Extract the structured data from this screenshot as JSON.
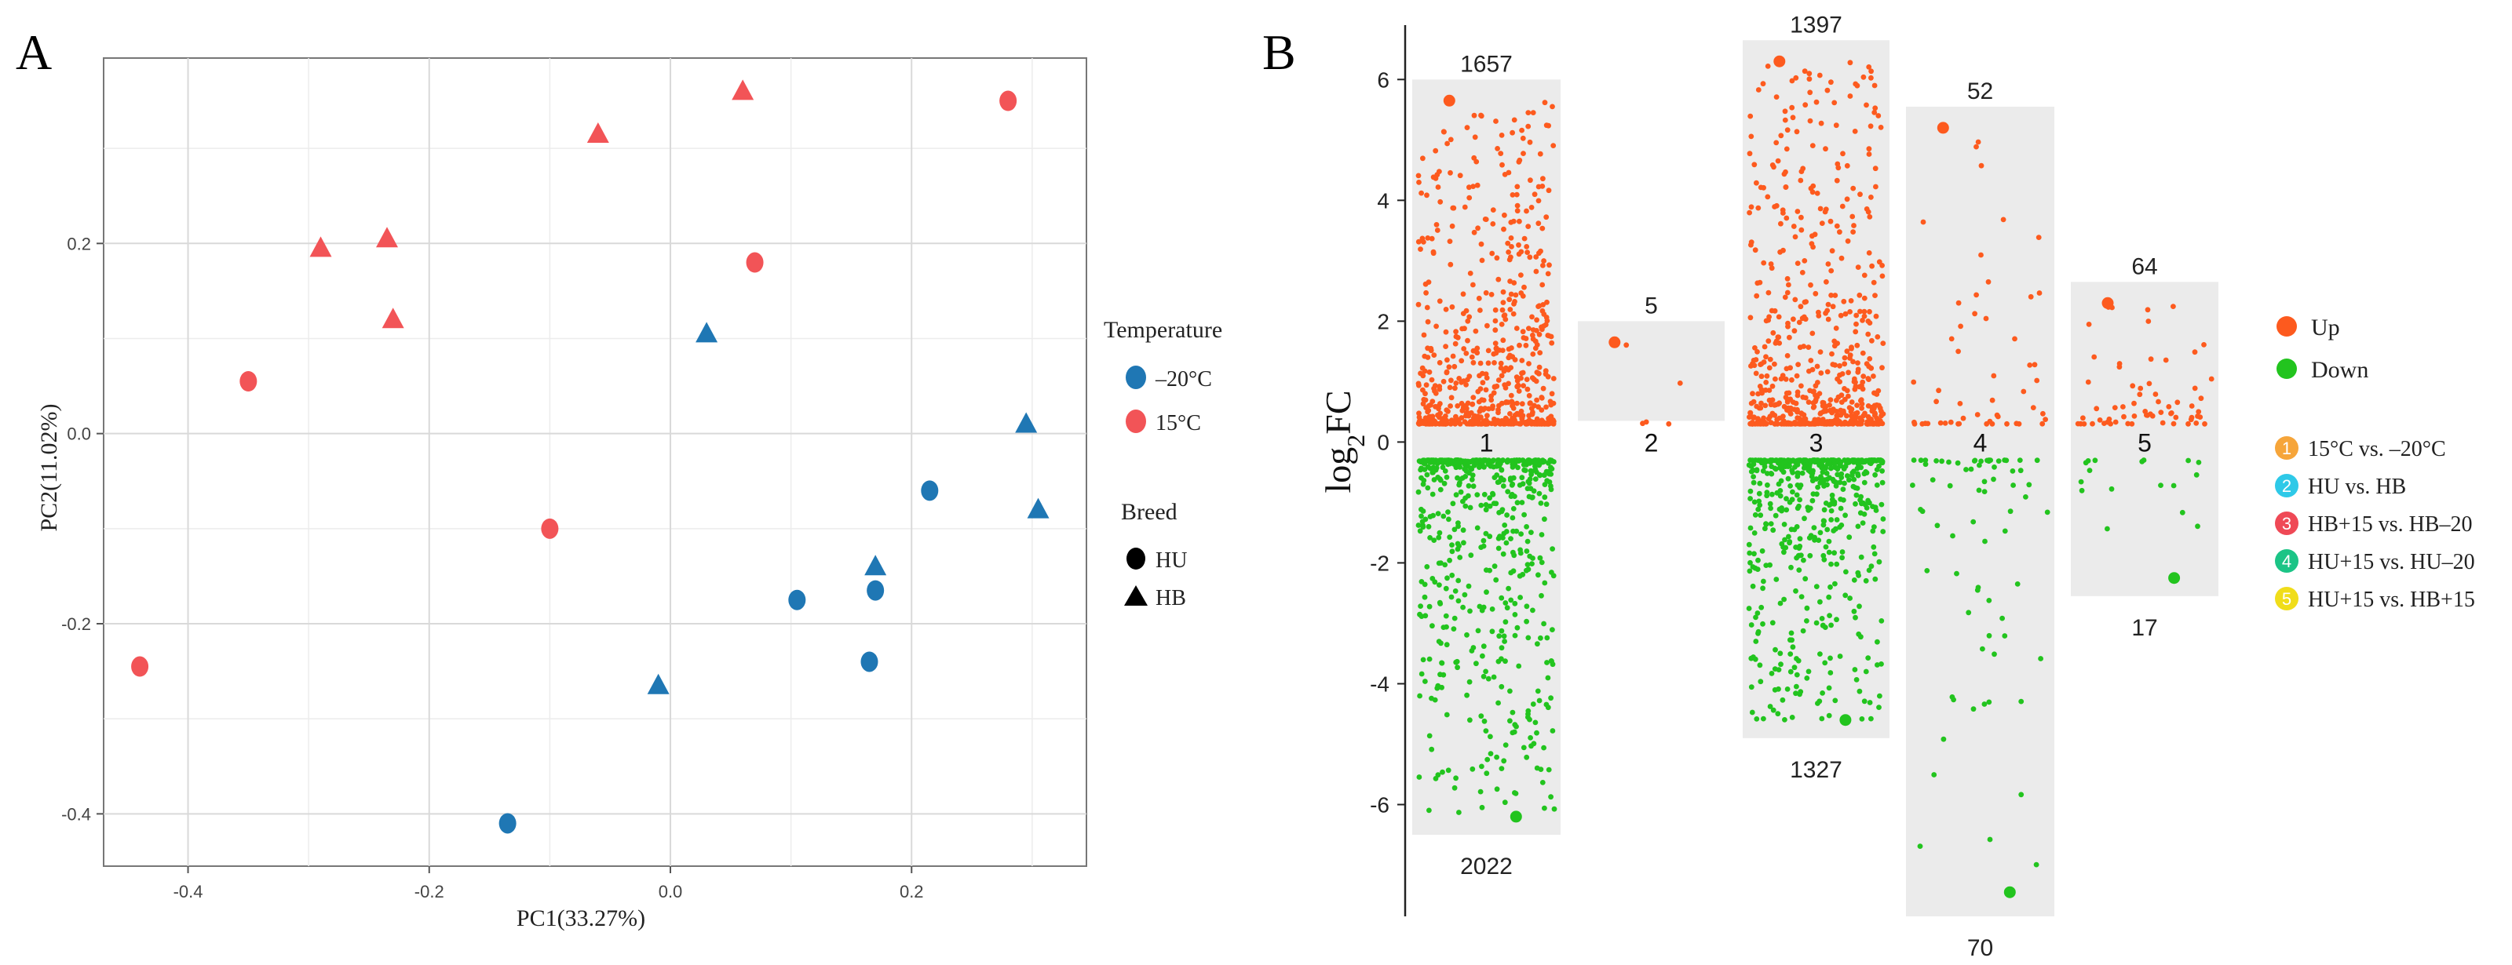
{
  "panel_a": {
    "label": "A",
    "chart_data": {
      "type": "scatter",
      "xlabel": "PC1(33.27%)",
      "ylabel": "PC2(11.02%)",
      "xlim": [
        -0.47,
        0.345
      ],
      "ylim": [
        -0.455,
        0.395
      ],
      "xticks": [
        -0.4,
        -0.2,
        0.0,
        0.2
      ],
      "xtick_labels": [
        "-0.4",
        "-0.2",
        "0.0",
        "0.2"
      ],
      "yticks": [
        -0.4,
        -0.2,
        0.0,
        0.2
      ],
      "ytick_labels": [
        "-0.4",
        "-0.2",
        "0.0",
        "0.2"
      ],
      "grid": true,
      "legend": {
        "temperature_title": "Temperature",
        "temperature_items": [
          {
            "label": "–20°C",
            "color": "#1f77b4"
          },
          {
            "label": "15°C",
            "color": "#f25457"
          }
        ],
        "breed_title": "Breed",
        "breed_items": [
          {
            "label": "HU",
            "shape": "circle"
          },
          {
            "label": "HB",
            "shape": "triangle"
          }
        ]
      },
      "points": [
        {
          "x": 0.06,
          "y": 0.36,
          "temp": "15",
          "breed": "HB"
        },
        {
          "x": -0.06,
          "y": 0.315,
          "temp": "15",
          "breed": "HB"
        },
        {
          "x": -0.29,
          "y": 0.195,
          "temp": "15",
          "breed": "HB"
        },
        {
          "x": -0.235,
          "y": 0.205,
          "temp": "15",
          "breed": "HB"
        },
        {
          "x": -0.23,
          "y": 0.12,
          "temp": "15",
          "breed": "HB"
        },
        {
          "x": 0.28,
          "y": 0.35,
          "temp": "15",
          "breed": "HU"
        },
        {
          "x": 0.07,
          "y": 0.18,
          "temp": "15",
          "breed": "HU"
        },
        {
          "x": -0.35,
          "y": 0.055,
          "temp": "15",
          "breed": "HU"
        },
        {
          "x": -0.1,
          "y": -0.1,
          "temp": "15",
          "breed": "HU"
        },
        {
          "x": -0.44,
          "y": -0.245,
          "temp": "15",
          "breed": "HU"
        },
        {
          "x": 0.03,
          "y": 0.105,
          "temp": "-20",
          "breed": "HB"
        },
        {
          "x": 0.295,
          "y": 0.01,
          "temp": "-20",
          "breed": "HB"
        },
        {
          "x": 0.305,
          "y": -0.08,
          "temp": "-20",
          "breed": "HB"
        },
        {
          "x": 0.17,
          "y": -0.14,
          "temp": "-20",
          "breed": "HB"
        },
        {
          "x": -0.01,
          "y": -0.265,
          "temp": "-20",
          "breed": "HB"
        },
        {
          "x": 0.215,
          "y": -0.06,
          "temp": "-20",
          "breed": "HU"
        },
        {
          "x": 0.105,
          "y": -0.175,
          "temp": "-20",
          "breed": "HU"
        },
        {
          "x": 0.17,
          "y": -0.165,
          "temp": "-20",
          "breed": "HU"
        },
        {
          "x": 0.165,
          "y": -0.24,
          "temp": "-20",
          "breed": "HU"
        },
        {
          "x": -0.135,
          "y": -0.41,
          "temp": "-20",
          "breed": "HU"
        }
      ]
    }
  },
  "panel_b": {
    "label": "B",
    "chart_data": {
      "type": "scatter",
      "ylabel_main": "log",
      "ylabel_sub": "2",
      "ylabel_tail": "FC",
      "ylim": [
        -7.85,
        6.9
      ],
      "yticks": [
        6,
        4,
        2,
        0,
        -2,
        -4,
        -6
      ],
      "ytick_labels": [
        "6",
        "4",
        "2",
        "0",
        "-2",
        "-4",
        "-6"
      ],
      "colors": {
        "up": "#fd5a1e",
        "down": "#22c41e",
        "panel": "#ebebeb"
      },
      "legend": {
        "direction_items": [
          {
            "label": "Up",
            "color": "#fd5a1e"
          },
          {
            "label": "Down",
            "color": "#22c41e"
          }
        ],
        "comparison_items": [
          {
            "num": "1",
            "label": "15°C vs. –20°C",
            "color": "#f6a53a"
          },
          {
            "num": "2",
            "label": "HU vs. HB",
            "color": "#2ec9e8"
          },
          {
            "num": "3",
            "label": "HB+15 vs. HB–20",
            "color": "#ef4956"
          },
          {
            "num": "4",
            "label": "HU+15 vs. HU–20",
            "color": "#1bc486"
          },
          {
            "num": "5",
            "label": "HU+15 vs. HB+15",
            "color": "#f0dd1a"
          }
        ]
      },
      "groups": [
        {
          "id": "1",
          "up_count": 1657,
          "down_count": 2022,
          "up_label": "1657",
          "down_label": "2022",
          "y_top": 6.0,
          "y_bottom": -6.5,
          "max_up": 5.65,
          "min_down": -6.2,
          "n_up_draw": 620,
          "n_down_draw": 560
        },
        {
          "id": "2",
          "up_count": 5,
          "down_count": 0,
          "up_label": "5",
          "down_label": "",
          "y_top": 2.0,
          "y_bottom": 0.35,
          "max_up": 1.65,
          "min_down": null,
          "n_up_draw": 5,
          "n_down_draw": 0
        },
        {
          "id": "3",
          "up_count": 1397,
          "down_count": 1327,
          "up_label": "1397",
          "down_label": "1327",
          "y_top": 6.65,
          "y_bottom": -4.9,
          "max_up": 6.3,
          "min_down": -4.6,
          "n_up_draw": 600,
          "n_down_draw": 520
        },
        {
          "id": "4",
          "up_count": 52,
          "down_count": 70,
          "up_label": "52",
          "down_label": "70",
          "y_top": 5.55,
          "y_bottom": -7.85,
          "max_up": 5.2,
          "min_down": -7.45,
          "n_up_draw": 52,
          "n_down_draw": 70
        },
        {
          "id": "5",
          "up_count": 64,
          "down_count": 17,
          "up_label": "64",
          "down_label": "17",
          "y_top": 2.65,
          "y_bottom": -2.55,
          "max_up": 2.3,
          "min_down": -2.25,
          "n_up_draw": 64,
          "n_down_draw": 17
        }
      ]
    }
  }
}
